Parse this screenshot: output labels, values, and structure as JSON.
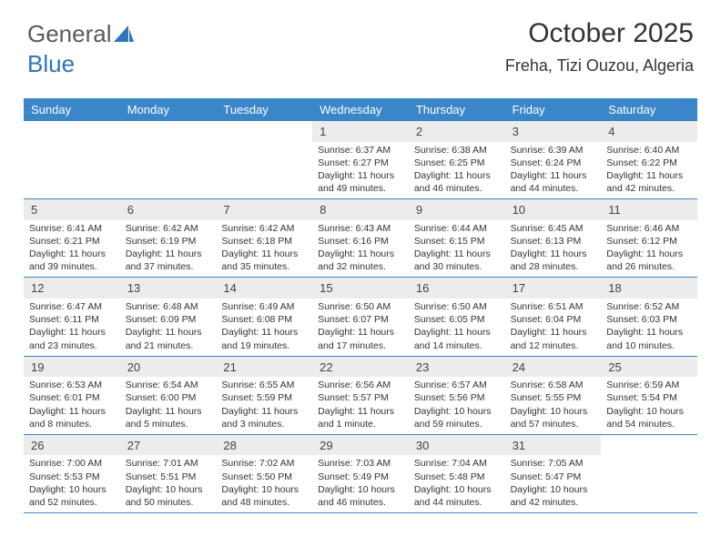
{
  "logo": {
    "text1": "General",
    "text2": "Blue"
  },
  "title": {
    "month": "October 2025",
    "location": "Freha, Tizi Ouzou, Algeria"
  },
  "colors": {
    "header_bg": "#3a86c8",
    "header_text": "#ffffff",
    "daynum_bg": "#ececec",
    "row_border": "#3a86c8",
    "text": "#333333",
    "logo_gray": "#5a5a5a",
    "logo_blue": "#2f76b8",
    "background": "#ffffff"
  },
  "weekdays": [
    "Sunday",
    "Monday",
    "Tuesday",
    "Wednesday",
    "Thursday",
    "Friday",
    "Saturday"
  ],
  "weeks": [
    [
      {
        "n": "",
        "sr": "",
        "ss": "",
        "d1": "",
        "d2": ""
      },
      {
        "n": "",
        "sr": "",
        "ss": "",
        "d1": "",
        "d2": ""
      },
      {
        "n": "",
        "sr": "",
        "ss": "",
        "d1": "",
        "d2": ""
      },
      {
        "n": "1",
        "sr": "Sunrise: 6:37 AM",
        "ss": "Sunset: 6:27 PM",
        "d1": "Daylight: 11 hours",
        "d2": "and 49 minutes."
      },
      {
        "n": "2",
        "sr": "Sunrise: 6:38 AM",
        "ss": "Sunset: 6:25 PM",
        "d1": "Daylight: 11 hours",
        "d2": "and 46 minutes."
      },
      {
        "n": "3",
        "sr": "Sunrise: 6:39 AM",
        "ss": "Sunset: 6:24 PM",
        "d1": "Daylight: 11 hours",
        "d2": "and 44 minutes."
      },
      {
        "n": "4",
        "sr": "Sunrise: 6:40 AM",
        "ss": "Sunset: 6:22 PM",
        "d1": "Daylight: 11 hours",
        "d2": "and 42 minutes."
      }
    ],
    [
      {
        "n": "5",
        "sr": "Sunrise: 6:41 AM",
        "ss": "Sunset: 6:21 PM",
        "d1": "Daylight: 11 hours",
        "d2": "and 39 minutes."
      },
      {
        "n": "6",
        "sr": "Sunrise: 6:42 AM",
        "ss": "Sunset: 6:19 PM",
        "d1": "Daylight: 11 hours",
        "d2": "and 37 minutes."
      },
      {
        "n": "7",
        "sr": "Sunrise: 6:42 AM",
        "ss": "Sunset: 6:18 PM",
        "d1": "Daylight: 11 hours",
        "d2": "and 35 minutes."
      },
      {
        "n": "8",
        "sr": "Sunrise: 6:43 AM",
        "ss": "Sunset: 6:16 PM",
        "d1": "Daylight: 11 hours",
        "d2": "and 32 minutes."
      },
      {
        "n": "9",
        "sr": "Sunrise: 6:44 AM",
        "ss": "Sunset: 6:15 PM",
        "d1": "Daylight: 11 hours",
        "d2": "and 30 minutes."
      },
      {
        "n": "10",
        "sr": "Sunrise: 6:45 AM",
        "ss": "Sunset: 6:13 PM",
        "d1": "Daylight: 11 hours",
        "d2": "and 28 minutes."
      },
      {
        "n": "11",
        "sr": "Sunrise: 6:46 AM",
        "ss": "Sunset: 6:12 PM",
        "d1": "Daylight: 11 hours",
        "d2": "and 26 minutes."
      }
    ],
    [
      {
        "n": "12",
        "sr": "Sunrise: 6:47 AM",
        "ss": "Sunset: 6:11 PM",
        "d1": "Daylight: 11 hours",
        "d2": "and 23 minutes."
      },
      {
        "n": "13",
        "sr": "Sunrise: 6:48 AM",
        "ss": "Sunset: 6:09 PM",
        "d1": "Daylight: 11 hours",
        "d2": "and 21 minutes."
      },
      {
        "n": "14",
        "sr": "Sunrise: 6:49 AM",
        "ss": "Sunset: 6:08 PM",
        "d1": "Daylight: 11 hours",
        "d2": "and 19 minutes."
      },
      {
        "n": "15",
        "sr": "Sunrise: 6:50 AM",
        "ss": "Sunset: 6:07 PM",
        "d1": "Daylight: 11 hours",
        "d2": "and 17 minutes."
      },
      {
        "n": "16",
        "sr": "Sunrise: 6:50 AM",
        "ss": "Sunset: 6:05 PM",
        "d1": "Daylight: 11 hours",
        "d2": "and 14 minutes."
      },
      {
        "n": "17",
        "sr": "Sunrise: 6:51 AM",
        "ss": "Sunset: 6:04 PM",
        "d1": "Daylight: 11 hours",
        "d2": "and 12 minutes."
      },
      {
        "n": "18",
        "sr": "Sunrise: 6:52 AM",
        "ss": "Sunset: 6:03 PM",
        "d1": "Daylight: 11 hours",
        "d2": "and 10 minutes."
      }
    ],
    [
      {
        "n": "19",
        "sr": "Sunrise: 6:53 AM",
        "ss": "Sunset: 6:01 PM",
        "d1": "Daylight: 11 hours",
        "d2": "and 8 minutes."
      },
      {
        "n": "20",
        "sr": "Sunrise: 6:54 AM",
        "ss": "Sunset: 6:00 PM",
        "d1": "Daylight: 11 hours",
        "d2": "and 5 minutes."
      },
      {
        "n": "21",
        "sr": "Sunrise: 6:55 AM",
        "ss": "Sunset: 5:59 PM",
        "d1": "Daylight: 11 hours",
        "d2": "and 3 minutes."
      },
      {
        "n": "22",
        "sr": "Sunrise: 6:56 AM",
        "ss": "Sunset: 5:57 PM",
        "d1": "Daylight: 11 hours",
        "d2": "and 1 minute."
      },
      {
        "n": "23",
        "sr": "Sunrise: 6:57 AM",
        "ss": "Sunset: 5:56 PM",
        "d1": "Daylight: 10 hours",
        "d2": "and 59 minutes."
      },
      {
        "n": "24",
        "sr": "Sunrise: 6:58 AM",
        "ss": "Sunset: 5:55 PM",
        "d1": "Daylight: 10 hours",
        "d2": "and 57 minutes."
      },
      {
        "n": "25",
        "sr": "Sunrise: 6:59 AM",
        "ss": "Sunset: 5:54 PM",
        "d1": "Daylight: 10 hours",
        "d2": "and 54 minutes."
      }
    ],
    [
      {
        "n": "26",
        "sr": "Sunrise: 7:00 AM",
        "ss": "Sunset: 5:53 PM",
        "d1": "Daylight: 10 hours",
        "d2": "and 52 minutes."
      },
      {
        "n": "27",
        "sr": "Sunrise: 7:01 AM",
        "ss": "Sunset: 5:51 PM",
        "d1": "Daylight: 10 hours",
        "d2": "and 50 minutes."
      },
      {
        "n": "28",
        "sr": "Sunrise: 7:02 AM",
        "ss": "Sunset: 5:50 PM",
        "d1": "Daylight: 10 hours",
        "d2": "and 48 minutes."
      },
      {
        "n": "29",
        "sr": "Sunrise: 7:03 AM",
        "ss": "Sunset: 5:49 PM",
        "d1": "Daylight: 10 hours",
        "d2": "and 46 minutes."
      },
      {
        "n": "30",
        "sr": "Sunrise: 7:04 AM",
        "ss": "Sunset: 5:48 PM",
        "d1": "Daylight: 10 hours",
        "d2": "and 44 minutes."
      },
      {
        "n": "31",
        "sr": "Sunrise: 7:05 AM",
        "ss": "Sunset: 5:47 PM",
        "d1": "Daylight: 10 hours",
        "d2": "and 42 minutes."
      },
      {
        "n": "",
        "sr": "",
        "ss": "",
        "d1": "",
        "d2": ""
      }
    ]
  ]
}
